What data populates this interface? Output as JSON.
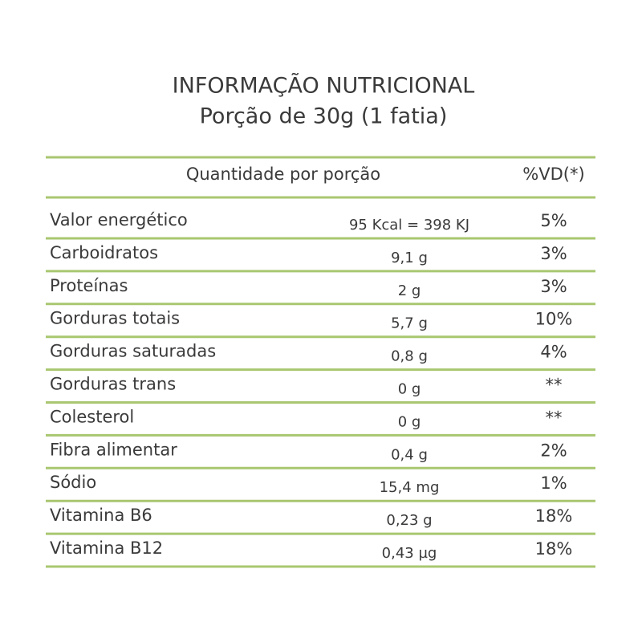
{
  "header": {
    "title": "INFORMAÇÃO NUTRICIONAL",
    "subtitle": "Porção de 30g (1 fatia)"
  },
  "table": {
    "columns": [
      "Quantidade por porção",
      "%VD(*)"
    ],
    "rows": [
      [
        "Valor energético",
        "95 Kcal = 398 KJ",
        "5%"
      ],
      [
        "Carboidratos",
        "9,1 g",
        "3%"
      ],
      [
        "Proteínas",
        "2 g",
        "3%"
      ],
      [
        "Gorduras totais",
        "5,7 g",
        "10%"
      ],
      [
        "Gorduras saturadas",
        "0,8 g",
        "4%"
      ],
      [
        "Gorduras trans",
        "0 g",
        "**"
      ],
      [
        "Colesterol",
        "0 g",
        "**"
      ],
      [
        "Fibra alimentar",
        "0,4 g",
        "2%"
      ],
      [
        "Sódio",
        "15,4 mg",
        "1%"
      ],
      [
        "Vitamina B6",
        "0,23 g",
        "18%"
      ],
      [
        "Vitamina B12",
        "0,43 µg",
        "18%"
      ]
    ]
  }
}
